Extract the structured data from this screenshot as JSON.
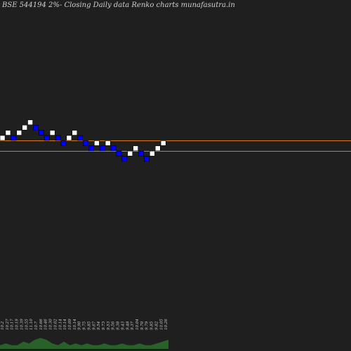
{
  "chart_data": {
    "type": "renko",
    "title": "BSE 544194  2%-   Closing Daily data  Renko  charts munafasutra.in",
    "bricks": [
      {
        "dir": "up",
        "level": 0
      },
      {
        "dir": "up",
        "level": 1
      },
      {
        "dir": "down",
        "level": 0
      },
      {
        "dir": "up",
        "level": 1
      },
      {
        "dir": "up",
        "level": 2
      },
      {
        "dir": "up",
        "level": 3
      },
      {
        "dir": "down",
        "level": 2
      },
      {
        "dir": "down",
        "level": 1
      },
      {
        "dir": "down",
        "level": 0
      },
      {
        "dir": "up",
        "level": 1
      },
      {
        "dir": "down",
        "level": 0
      },
      {
        "dir": "down",
        "level": -1
      },
      {
        "dir": "up",
        "level": 0
      },
      {
        "dir": "up",
        "level": 1
      },
      {
        "dir": "down",
        "level": 0
      },
      {
        "dir": "down",
        "level": -1
      },
      {
        "dir": "down",
        "level": -2
      },
      {
        "dir": "up",
        "level": -1
      },
      {
        "dir": "down",
        "level": -2
      },
      {
        "dir": "up",
        "level": -1
      },
      {
        "dir": "down",
        "level": -2
      },
      {
        "dir": "down",
        "level": -3
      },
      {
        "dir": "down",
        "level": -4
      },
      {
        "dir": "up",
        "level": -3
      },
      {
        "dir": "up",
        "level": -2
      },
      {
        "dir": "down",
        "level": -3
      },
      {
        "dir": "down",
        "level": -4
      },
      {
        "dir": "up",
        "level": -3
      },
      {
        "dir": "up",
        "level": -2
      },
      {
        "dir": "up",
        "level": -1
      }
    ],
    "reference_lines": [
      "upper",
      "lower"
    ],
    "colors": {
      "background": "#1f1f1f",
      "up": "#ffffff",
      "down": "#0000ff",
      "line": "#d2781e",
      "volume": "#2a6e2a",
      "text": "#cfcfcf"
    },
    "volume": [
      2,
      3,
      2,
      2,
      4,
      3,
      5,
      6,
      5,
      3,
      2,
      4,
      2,
      3,
      2,
      3,
      2,
      2,
      3,
      2,
      2,
      3,
      2,
      2,
      3,
      2,
      2,
      3,
      4,
      5
    ],
    "price_labels": [
      "10.2",
      "10.27",
      "10.17",
      "10.19",
      "10.39",
      "10.55",
      "11.10",
      "10.7",
      "10.66",
      "10.46",
      "10.30",
      "10.02",
      "10.14",
      "10.14",
      "10.09",
      "10.14",
      "9.90",
      "9.75",
      "9.85",
      "9.67",
      "9.54",
      "9.73",
      "9.53",
      "9.56",
      "9.38",
      "9.43",
      "9.48",
      "9.37",
      "10.04",
      "9.70",
      "9.79",
      "9.85",
      "9.82",
      "10.05",
      "10.26"
    ]
  }
}
